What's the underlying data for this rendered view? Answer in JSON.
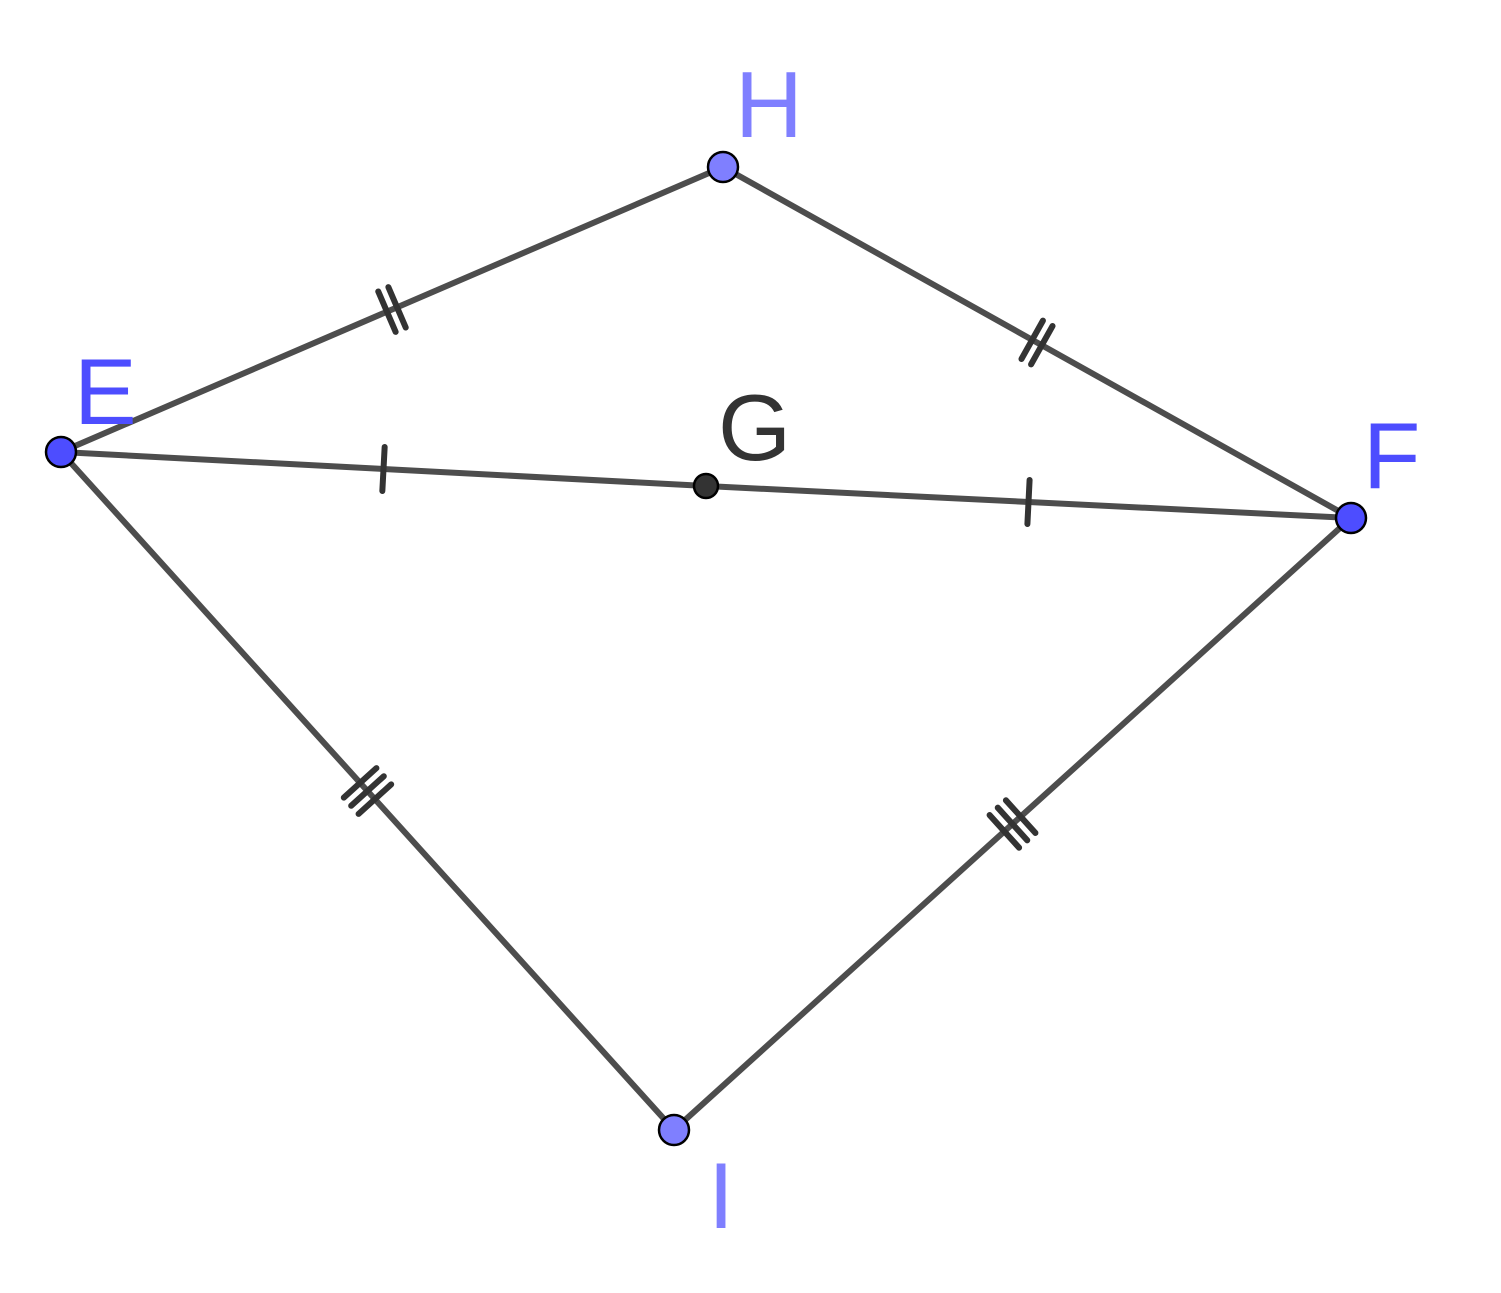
{
  "points": [
    {
      "id": "E",
      "label": "E",
      "color": "#4d4dff",
      "label_color": "#4d4dff"
    },
    {
      "id": "F",
      "label": "F",
      "color": "#4d4dff",
      "label_color": "#4d4dff"
    },
    {
      "id": "H",
      "label": "H",
      "color": "#7f7fff",
      "label_color": "#7f7fff"
    },
    {
      "id": "I",
      "label": "I",
      "color": "#7f7fff",
      "label_color": "#7f7fff"
    },
    {
      "id": "G",
      "label": "G",
      "color": "#333333",
      "label_color": "#333333"
    }
  ],
  "segments": [
    {
      "from": "E",
      "to": "H",
      "ticks": 2
    },
    {
      "from": "H",
      "to": "F",
      "ticks": 2
    },
    {
      "from": "E",
      "to": "G",
      "ticks": 1
    },
    {
      "from": "G",
      "to": "F",
      "ticks": 1
    },
    {
      "from": "E",
      "to": "I",
      "ticks": 3
    },
    {
      "from": "I",
      "to": "F",
      "ticks": 3
    }
  ],
  "colors": {
    "segment": "#4d4d4d",
    "tick": "#333333",
    "background": "#ffffff"
  }
}
